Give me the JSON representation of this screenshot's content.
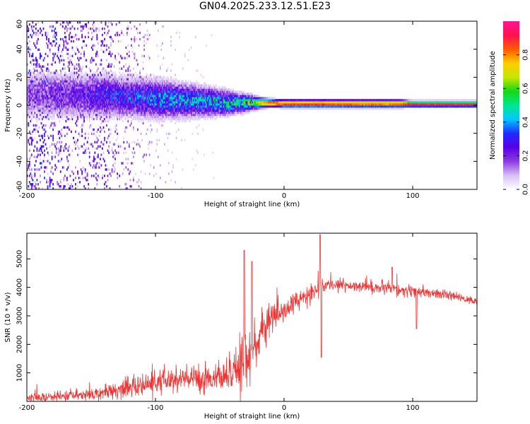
{
  "title": "GN04.2025.233.12.51.E23",
  "chart_data": [
    {
      "type": "heatmap",
      "xlabel": "Height of straight line (km)",
      "ylabel": "Frequency (Hz)",
      "xlim": [
        -200,
        150
      ],
      "ylim": [
        -60,
        60
      ],
      "x_ticks": [
        -200,
        -100,
        0,
        100
      ],
      "y_ticks": [
        -60,
        -40,
        -20,
        0,
        20,
        40,
        60
      ],
      "colorbar": {
        "label": "Normalized spectral amplitude",
        "range": [
          0.0,
          1.0
        ],
        "ticks": [
          0.0,
          0.2,
          0.4,
          0.6,
          0.8
        ],
        "colormap": [
          "#ffffff",
          "#d7bff5",
          "#8b3be0",
          "#5a00e6",
          "#1f2bff",
          "#00c8ff",
          "#00e68c",
          "#16d916",
          "#c6e600",
          "#ffcc00",
          "#ff5a00",
          "#ff1050",
          "#ff1493"
        ]
      },
      "profile": {
        "x": [
          -200,
          -180,
          -160,
          -140,
          -120,
          -100,
          -80,
          -60,
          -45,
          -35,
          -25,
          -18,
          -10,
          0,
          10,
          20,
          30,
          40,
          50,
          60,
          70,
          80,
          90,
          100,
          110,
          120,
          130,
          140,
          150
        ],
        "center_hz": [
          7,
          7,
          6,
          6,
          5,
          4,
          3,
          2,
          1,
          1,
          1,
          1,
          1,
          0.5,
          0.5,
          0.5,
          0.5,
          0.5,
          0.5,
          0.5,
          0.5,
          0.5,
          0.5,
          0.2,
          0.2,
          0.2,
          0.2,
          0.2,
          0.2
        ],
        "halfwidth_hz": [
          10,
          10,
          9,
          9,
          8,
          8,
          7,
          6,
          5,
          4,
          3,
          2,
          1.5,
          1.5,
          1.5,
          1.5,
          1.5,
          1.5,
          1.5,
          1.5,
          1.5,
          1.5,
          1.5,
          1.2,
          1.2,
          1.2,
          1.2,
          1.2,
          1.2
        ],
        "peak_amplitude": [
          0.15,
          0.18,
          0.22,
          0.26,
          0.3,
          0.35,
          0.38,
          0.4,
          0.42,
          0.45,
          0.55,
          0.8,
          0.95,
          0.97,
          0.97,
          0.97,
          0.97,
          0.95,
          0.93,
          0.92,
          0.92,
          0.9,
          0.93,
          0.97,
          0.97,
          0.97,
          0.97,
          0.97,
          0.97
        ],
        "scatter_amplitude": [
          0.35,
          0.35,
          0.3,
          0.28,
          0.22,
          0.12,
          0.08,
          0.06,
          0.03,
          0.02,
          0,
          0,
          0,
          0,
          0,
          0,
          0,
          0,
          0,
          0,
          0,
          0,
          0,
          0,
          0,
          0,
          0,
          0,
          0
        ]
      }
    },
    {
      "type": "line",
      "xlabel": "Height of straight line (km)",
      "ylabel": "SNR (10 * v/v)",
      "xlim": [
        -200,
        150
      ],
      "ylim": [
        0,
        5900
      ],
      "x_ticks": [
        -200,
        -100,
        0,
        100
      ],
      "y_ticks": [
        1000,
        2000,
        3000,
        4000,
        5000
      ],
      "color": "#ee3333",
      "series": [
        {
          "x": [
            -200,
            -190,
            -180,
            -170,
            -160,
            -150,
            -140,
            -130,
            -120,
            -110,
            -100,
            -90,
            -80,
            -70,
            -60,
            -50,
            -45,
            -40,
            -35,
            -30,
            -25,
            -20,
            -15,
            -10,
            -5,
            0,
            5,
            10,
            15,
            20,
            25,
            30,
            35,
            40,
            50,
            60,
            70,
            80,
            90,
            100,
            110,
            120,
            130,
            140,
            150
          ],
          "base": [
            120,
            130,
            150,
            180,
            220,
            270,
            330,
            400,
            480,
            560,
            640,
            700,
            760,
            800,
            820,
            840,
            860,
            900,
            1200,
            1500,
            1800,
            2200,
            2600,
            2900,
            3050,
            3200,
            3350,
            3500,
            3650,
            3800,
            3900,
            4000,
            4050,
            4100,
            4080,
            4050,
            4000,
            3950,
            3900,
            3850,
            3800,
            3750,
            3700,
            3600,
            3500
          ],
          "noise": [
            150,
            150,
            150,
            170,
            180,
            200,
            220,
            260,
            300,
            350,
            400,
            450,
            450,
            420,
            400,
            380,
            400,
            600,
            900,
            1100,
            1000,
            800,
            600,
            500,
            450,
            400,
            350,
            300,
            300,
            280,
            250,
            220,
            200,
            200,
            200,
            200,
            200,
            220,
            220,
            180,
            160,
            150,
            140,
            130,
            120
          ]
        }
      ],
      "annotations": [
        {
          "x": -31,
          "y": 5300
        },
        {
          "x": -25,
          "y": 4900
        },
        {
          "x": 28,
          "y": 5850
        },
        {
          "x": 29,
          "y": 1550
        },
        {
          "x": 84,
          "y": 4700
        },
        {
          "x": 103,
          "y": 2550
        }
      ]
    }
  ]
}
